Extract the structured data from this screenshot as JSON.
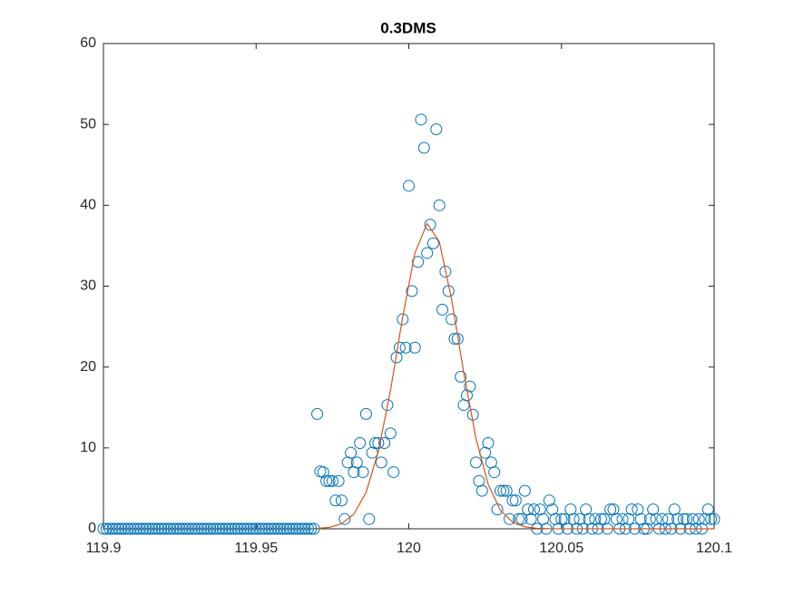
{
  "chart_data": {
    "type": "scatter",
    "title": "0.3DMS",
    "xlim": [
      119.9,
      120.1
    ],
    "xticks": [
      119.9,
      119.95,
      120,
      120.05,
      120.1
    ],
    "ylim": [
      0,
      60
    ],
    "yticks": [
      0,
      10,
      20,
      30,
      40,
      50,
      60
    ],
    "grid": false,
    "series": [
      {
        "type": "scatter",
        "color": "#0072bd",
        "x": [
          119.9,
          119.901,
          119.902,
          119.903,
          119.904,
          119.905,
          119.906,
          119.907,
          119.908,
          119.909,
          119.91,
          119.911,
          119.912,
          119.913,
          119.914,
          119.915,
          119.916,
          119.917,
          119.918,
          119.919,
          119.92,
          119.921,
          119.922,
          119.923,
          119.924,
          119.925,
          119.926,
          119.927,
          119.928,
          119.929,
          119.93,
          119.931,
          119.932,
          119.933,
          119.934,
          119.935,
          119.936,
          119.937,
          119.938,
          119.939,
          119.94,
          119.941,
          119.942,
          119.943,
          119.944,
          119.945,
          119.946,
          119.947,
          119.948,
          119.949,
          119.95,
          119.951,
          119.952,
          119.953,
          119.954,
          119.955,
          119.956,
          119.957,
          119.958,
          119.959,
          119.96,
          119.961,
          119.962,
          119.963,
          119.964,
          119.965,
          119.966,
          119.967,
          119.968,
          119.969,
          119.97,
          119.971,
          119.972,
          119.973,
          119.974,
          119.975,
          119.976,
          119.977,
          119.978,
          119.979,
          119.98,
          119.981,
          119.982,
          119.983,
          119.984,
          119.985,
          119.986,
          119.987,
          119.988,
          119.989,
          119.99,
          119.991,
          119.992,
          119.993,
          119.994,
          119.995,
          119.996,
          119.997,
          119.998,
          119.999,
          120,
          120.001,
          120.002,
          120.003,
          120.004,
          120.005,
          120.006,
          120.007,
          120.008,
          120.009,
          120.01,
          120.011,
          120.012,
          120.013,
          120.014,
          120.015,
          120.016,
          120.017,
          120.018,
          120.019,
          120.02,
          120.021,
          120.022,
          120.023,
          120.024,
          120.025,
          120.026,
          120.027,
          120.028,
          120.029,
          120.03,
          120.031,
          120.032,
          120.033,
          120.034,
          120.035,
          120.036,
          120.037,
          120.038,
          120.039,
          120.04,
          120.041,
          120.042,
          120.043,
          120.044,
          120.045,
          120.046,
          120.047,
          120.048,
          120.049,
          120.05,
          120.051,
          120.052,
          120.053,
          120.054,
          120.055,
          120.056,
          120.057,
          120.058,
          120.059,
          120.06,
          120.061,
          120.062,
          120.063,
          120.064,
          120.065,
          120.066,
          120.067,
          120.068,
          120.069,
          120.07,
          120.071,
          120.072,
          120.073,
          120.074,
          120.075,
          120.076,
          120.077,
          120.078,
          120.079,
          120.08,
          120.081,
          120.082,
          120.083,
          120.084,
          120.085,
          120.086,
          120.087,
          120.088,
          120.089,
          120.09,
          120.091,
          120.092,
          120.093,
          120.094,
          120.095,
          120.096,
          120.097,
          120.098,
          120.099,
          120.1
        ],
        "values": [
          0,
          0,
          0,
          0,
          0,
          0,
          0,
          0,
          0,
          0,
          0,
          0,
          0,
          0,
          0,
          0,
          0,
          0,
          0,
          0,
          0,
          0,
          0,
          0,
          0,
          0,
          0,
          0,
          0,
          0,
          0,
          0,
          0,
          0,
          0,
          0,
          0,
          0,
          0,
          0,
          0,
          0,
          0,
          0,
          0,
          0,
          0,
          0,
          0,
          0,
          0,
          0,
          0,
          0,
          0,
          0,
          0,
          0,
          0,
          0,
          0,
          0,
          0,
          0,
          0,
          0,
          0,
          0,
          0,
          0,
          14.2,
          7.1,
          7.0,
          5.9,
          5.9,
          5.9,
          3.5,
          5.9,
          3.5,
          1.2,
          8.2,
          9.4,
          7.0,
          8.2,
          10.6,
          7.0,
          14.2,
          1.2,
          9.4,
          10.6,
          10.6,
          8.2,
          10.6,
          15.3,
          11.8,
          7.0,
          21.2,
          22.4,
          25.9,
          22.4,
          42.4,
          29.4,
          22.4,
          33.0,
          50.6,
          47.1,
          34.1,
          37.6,
          35.3,
          49.4,
          40.0,
          27.1,
          31.8,
          29.4,
          25.9,
          23.5,
          23.5,
          18.8,
          15.3,
          16.5,
          17.6,
          14.1,
          8.2,
          5.9,
          4.7,
          9.4,
          10.6,
          8.2,
          7.0,
          2.4,
          4.7,
          4.7,
          4.7,
          1.2,
          3.5,
          3.5,
          1.2,
          1.2,
          4.7,
          2.4,
          1.2,
          2.4,
          0,
          2.4,
          1.2,
          0,
          3.5,
          2.4,
          1.2,
          0,
          1.2,
          1.2,
          0,
          2.4,
          1.2,
          0,
          1.2,
          0,
          2.4,
          1.2,
          0,
          1.2,
          0,
          1.2,
          1.2,
          0,
          2.4,
          2.4,
          1.2,
          0,
          1.2,
          0,
          1.2,
          2.4,
          0,
          2.4,
          1.2,
          0,
          0,
          1.2,
          2.4,
          1.2,
          0,
          1.2,
          0,
          1.2,
          0,
          2.4,
          1.2,
          0,
          1.2,
          1.2,
          0,
          1.2,
          0,
          1.2,
          0,
          1.2,
          2.4,
          1.2,
          1.2
        ]
      },
      {
        "type": "line",
        "color": "#d95319",
        "x": [
          119.97,
          119.974,
          119.978,
          119.982,
          119.986,
          119.99,
          119.994,
          119.998,
          120.002,
          120.006,
          120.01,
          120.014,
          120.018,
          120.022,
          120.026,
          120.03,
          120.034,
          120.038,
          120.042,
          120.046,
          120.1
        ],
        "values": [
          0.04,
          0.18,
          0.62,
          1.81,
          4.49,
          9.52,
          17.1,
          26.2,
          34.1,
          37.75,
          35.5,
          28.4,
          19.3,
          11.2,
          5.5,
          2.3,
          0.82,
          0.25,
          0.06,
          0.01,
          0
        ]
      }
    ]
  }
}
